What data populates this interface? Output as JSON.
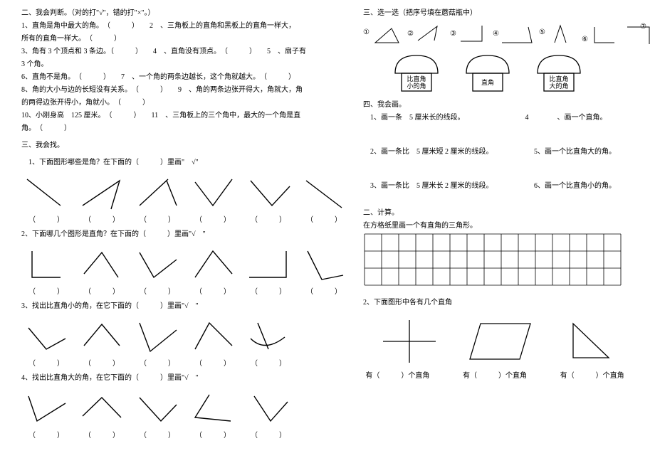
{
  "left": {
    "h2": "二、我会判断。（对的打\"√\"，错的打\"×\"。）",
    "q1a": "1、直角是角中最大的角。　（　　　）　　2　、三角板上的直角和黑板上的直角一样大，",
    "q1b": "所有的直角一样大。　（　　　）",
    "q3": "3、角有 3 个顶点和 3 条边。（　　　）　　4　、直角没有顶点。　（　　　）　　5　、扇子有",
    "q3b": "3 个角。",
    "q6": "6、直角不是角。　（　　　）　　7　、一个角的两条边越长，这个角就越大。　（　　　）",
    "q8": "8、角的大小与边的长短没有关系。　（　　　）　　9　、角的两条边张开得大，角就大，角",
    "q8b": "的两得边张开得小，角就小。　（　　　）",
    "q10": "10、小刚身高　125 厘米。　（　　　）　　11　、三角板上的三个角中，最大的一个角是直",
    "q10b": "角。　（　　　）",
    "h3": "三、我会找。",
    "f1": "1、下面图形哪些是角？在下面的（　　　）里画\"　√\"",
    "f2": "2、下面哪几个图形是直角？在下面的（　　　）里画\"√　\"",
    "f3": "3、找出比直角小的角，在它下面的（　　　）里画\"√　\"",
    "f4": "4、找出比直角大的角，在它下面的（　　　）里画\"√　\"",
    "paren": "（　　　）"
  },
  "right": {
    "h3": "三、选一选（把序号填在蘑菇瓶中）",
    "nums": [
      "①",
      "②",
      "③",
      "④",
      "⑤",
      "⑥",
      "⑦"
    ],
    "m1a": "比直角",
    "m1b": "小的角",
    "m2": "直角",
    "m3a": "比直角",
    "m3b": "大的角",
    "h4": "四、我会画。",
    "d1": "1、画一条　5 厘米长的线段。　　　　　　　　　4　　　　、画一个直角。",
    "d2": "2、画一条比　5 厘米短 2 厘米的线段。",
    "d5": "5、画一个比直角大的角。",
    "d3": "3、画一条比　5 厘米长 2 厘米的线段。",
    "d6": "6、画一个比直角小的角。",
    "h2b": "二、计算。",
    "gridline": "在方格纸里画一个有直角的三角形。",
    "s2": "2、下面图形中各有几个直角",
    "youlabel": "有（　　　）个直角"
  },
  "style": {
    "stroke": "#000000",
    "strokeWidth": 1.2,
    "thinStroke": 0.6,
    "bg": "#ffffff"
  }
}
